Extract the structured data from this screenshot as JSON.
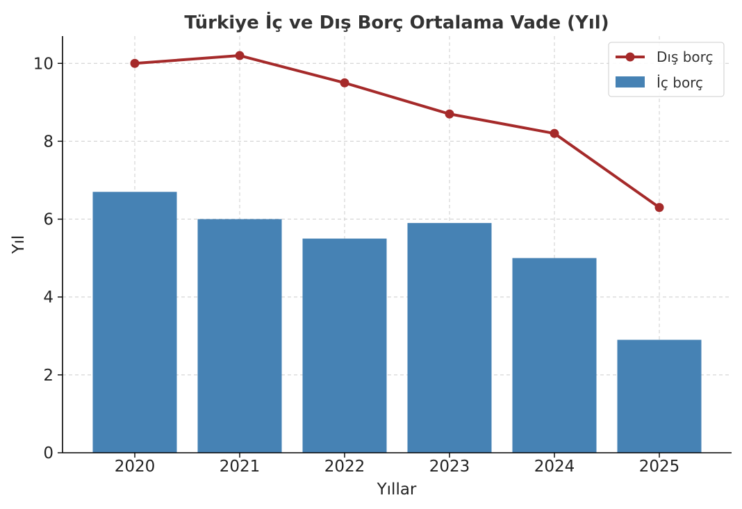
{
  "chart_data": {
    "type": "bar",
    "title": "Türkiye İç ve Dış Borç Ortalama Vade (Yıl)",
    "xlabel": "Yıllar",
    "ylabel": "Yıl",
    "categories": [
      "2020",
      "2021",
      "2022",
      "2023",
      "2024",
      "2025"
    ],
    "ylim": [
      0,
      10.7
    ],
    "yticks": [
      0,
      2,
      4,
      6,
      8,
      10
    ],
    "grid": true,
    "legend_position": "top-right",
    "series": [
      {
        "name": "İç borç",
        "type": "bar",
        "color": "#4682b4",
        "values": [
          6.7,
          6.0,
          5.5,
          5.9,
          5.0,
          2.9
        ]
      },
      {
        "name": "Dış borç",
        "type": "line",
        "color": "#a52a2a",
        "marker": "circle",
        "values": [
          10.0,
          10.2,
          9.5,
          8.7,
          8.2,
          6.3
        ]
      }
    ]
  }
}
